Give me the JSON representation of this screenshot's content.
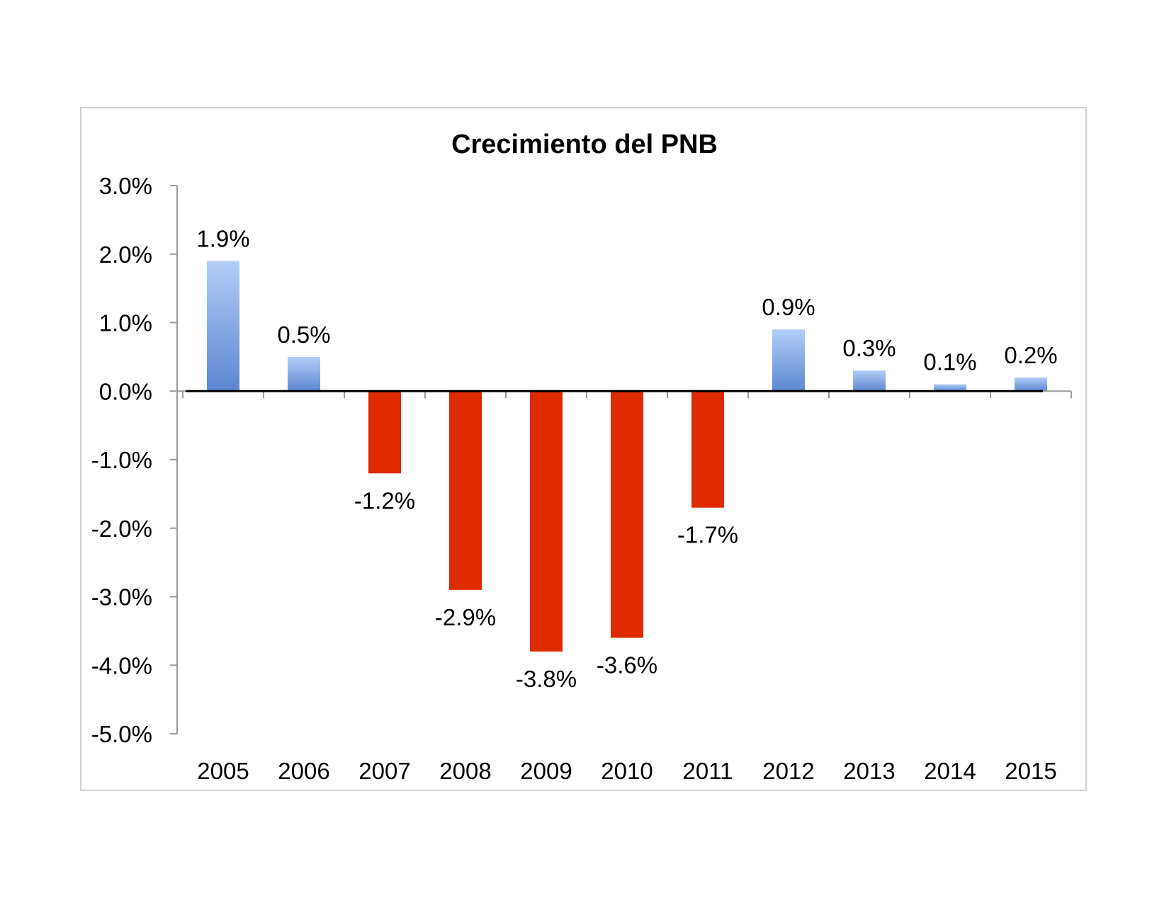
{
  "chart_data": {
    "type": "bar",
    "title": "Crecimiento del PNB",
    "xlabel": "",
    "ylabel": "",
    "categories": [
      "2005",
      "2006",
      "2007",
      "2008",
      "2009",
      "2010",
      "2011",
      "2012",
      "2013",
      "2014",
      "2015"
    ],
    "values": [
      1.9,
      0.5,
      -1.2,
      -2.9,
      -3.8,
      -3.6,
      -1.7,
      0.9,
      0.3,
      0.1,
      0.2
    ],
    "data_labels": [
      "1.9%",
      "0.5%",
      "-1.2%",
      "-2.9%",
      "-3.8%",
      "-3.6%",
      "-1.7%",
      "0.9%",
      "0.3%",
      "0.1%",
      "0.2%"
    ],
    "ylim": [
      -5.0,
      3.0
    ],
    "yticks": [
      3.0,
      2.0,
      1.0,
      0.0,
      -1.0,
      -2.0,
      -3.0,
      -4.0,
      -5.0
    ],
    "ytick_labels": [
      "3.0%",
      "2.0%",
      "1.0%",
      "0.0%",
      "-1.0%",
      "-2.0%",
      "-3.0%",
      "-4.0%",
      "-5.0%"
    ],
    "grid": false,
    "legend": "none",
    "colors": {
      "positive_top": "#b3cdf7",
      "positive_bottom": "#5b86d0",
      "negative": "#dd2a00",
      "axis": "#9a9a9a",
      "zero_line": "#000000"
    }
  }
}
